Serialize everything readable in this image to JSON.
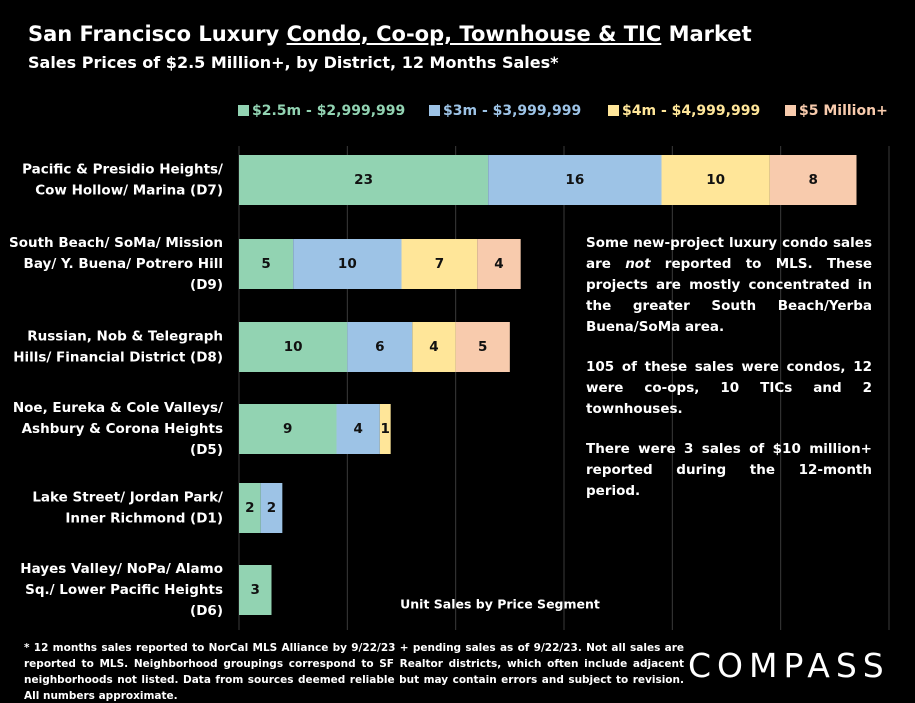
{
  "chart_data": {
    "type": "stacked-barh",
    "title": [
      "San Francisco Luxury ",
      "Condo, Co-op, Townhouse & TIC",
      " Market"
    ],
    "subtitle": "Sales Prices of $2.5 Million+, by District, 12 Months Sales*",
    "xlabel": "Unit Sales by Price Segment",
    "categories": [
      [
        "Pacific & Presidio Heights/",
        "Cow Hollow/ Marina (D7)"
      ],
      [
        "South Beach/ SoMa/ Mission",
        "Bay/ Y. Buena/ Potrero Hill",
        "(D9)"
      ],
      [
        "Russian, Nob & Telegraph",
        "Hills/ Financial District (D8)"
      ],
      [
        "Noe, Eureka & Cole Valleys/",
        "Ashbury & Corona Heights",
        "(D5)"
      ],
      [
        "Lake Street/ Jordan Park/",
        "Inner Richmond (D1)"
      ],
      [
        "Hayes Valley/ NoPa/ Alamo",
        "Sq./ Lower Pacific Heights",
        "(D6)"
      ]
    ],
    "series": [
      {
        "name": "$2.5m - $2,999,999",
        "color": "#92d3b2",
        "values": [
          23,
          5,
          10,
          9,
          2,
          3
        ]
      },
      {
        "name": "$3m - $3,999,999",
        "color": "#9dc3e6",
        "values": [
          16,
          10,
          6,
          4,
          2,
          null
        ]
      },
      {
        "name": "$4m - $4,999,999",
        "color": "#ffe699",
        "values": [
          10,
          7,
          4,
          1,
          null,
          null
        ]
      },
      {
        "name": "$5 Million+",
        "color": "#f8cbad",
        "values": [
          8,
          4,
          5,
          null,
          null,
          null
        ]
      }
    ],
    "xlim": [
      0,
      60
    ],
    "xticks": [
      0,
      10,
      20,
      30,
      40,
      50,
      60
    ],
    "grid": true,
    "annotations": [
      [
        "Some new-project luxury condo sales are ",
        "not",
        " reported to MLS. These projects are mostly concentrated in the greater South Beach/Yerba Buena/SoMa area."
      ],
      "105 of these sales were condos, 12 were co-ops, 10 TICs and 2 townhouses.",
      "There were 3 sales of $10 million+ reported during the 12-month period."
    ],
    "footnote": "* 12 months sales reported to NorCal MLS Alliance by 9/22/23 + pending sales as of 9/22/23. Not all sales are reported to MLS. Neighborhood groupings correspond to SF Realtor districts, which often include adjacent neighborhoods not listed. Data from sources deemed reliable but may contain errors and subject to revision. All numbers approximate."
  },
  "logo": "COMPASS"
}
